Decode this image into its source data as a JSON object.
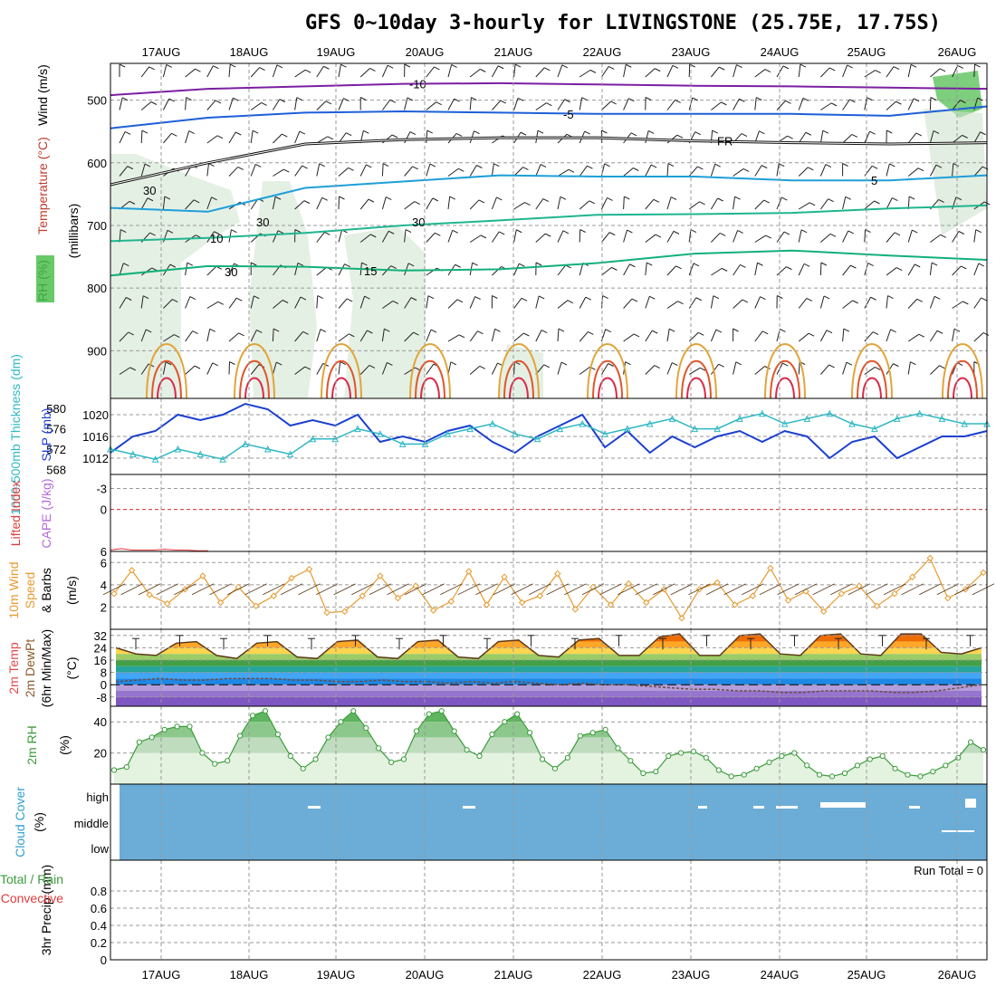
{
  "header": {
    "title": "GFS 0~10day 3-hourly for LIVINGSTONE (25.75E, 17.75S)"
  },
  "colors": {
    "temp_cold": "#7b1fa2",
    "temp_cool": "#1e5fd8",
    "temp_mild": "#1e9fd8",
    "temp_warm": "#1fb58f",
    "temp_hot": "#e1a53a",
    "temp_vhot": "#e0562b",
    "rh_fill": "#cfe3cf",
    "slp": "#1a3fd0",
    "thickness": "#2eb8c4",
    "wind_speed": "#e79a2f",
    "cloud": "#6badd6",
    "rh2m": "#3a9c3a"
  },
  "chart_data": [
    {
      "type": "line",
      "panel": "upper-air",
      "days": [
        "17AUG",
        "18AUG",
        "19AUG",
        "20AUG",
        "21AUG",
        "22AUG",
        "23AUG",
        "24AUG",
        "25AUG",
        "26AUG"
      ],
      "ylabel_parts": [
        "RH (%)",
        "Temperature (°C)",
        "Wind (m/s)"
      ],
      "ylabel_units": "(millibars)",
      "yticks": [
        500,
        600,
        700,
        800,
        900
      ],
      "ylim": [
        1000,
        450
      ],
      "contour_labels": [
        "-10",
        "-5",
        "FR",
        "5",
        "10",
        "15",
        "30"
      ],
      "series": [
        {
          "name": "-10",
          "values": [
            492,
            482,
            478,
            474,
            473,
            475,
            477,
            478,
            480,
            482
          ]
        },
        {
          "name": "-5",
          "values": [
            545,
            528,
            520,
            518,
            520,
            522,
            522,
            522,
            525,
            510
          ]
        },
        {
          "name": "FR",
          "values": [
            635,
            600,
            570,
            563,
            560,
            560,
            565,
            568,
            570,
            568
          ]
        },
        {
          "name": "5",
          "values": [
            672,
            678,
            640,
            630,
            620,
            622,
            622,
            628,
            628,
            620
          ]
        },
        {
          "name": "10",
          "values": [
            725,
            720,
            712,
            700,
            692,
            683,
            682,
            680,
            673,
            668
          ]
        },
        {
          "name": "15",
          "values": [
            780,
            765,
            766,
            772,
            770,
            760,
            745,
            740,
            748,
            755
          ]
        }
      ]
    },
    {
      "type": "line",
      "panel": "pressure",
      "ylabel_left": "1000-500mb Thickness (dm)",
      "ylabel_right": "SLP (mb)",
      "yticks_left": [
        568,
        572,
        576,
        580
      ],
      "yticks_right": [
        1012,
        1016,
        1020
      ],
      "series": [
        {
          "name": "SLP (mb)",
          "values": [
            1013,
            1016,
            1017,
            1020,
            1019,
            1020,
            1022,
            1021,
            1018,
            1019,
            1018,
            1020,
            1015,
            1016,
            1015,
            1017,
            1018,
            1015,
            1013,
            1016,
            1018,
            1020,
            1014,
            1017,
            1013,
            1016,
            1014,
            1016,
            1017,
            1015,
            1017,
            1016,
            1012,
            1015,
            1016,
            1012,
            1014,
            1016,
            1016,
            1017
          ]
        },
        {
          "name": "1000-500mb Thickness (dm)",
          "values": [
            572,
            571,
            570,
            572,
            571,
            570,
            573,
            572,
            571,
            574,
            574,
            576,
            575,
            573,
            573,
            575,
            576,
            577,
            575,
            574,
            576,
            577,
            575,
            576,
            577,
            578,
            576,
            576,
            578,
            579,
            577,
            578,
            579,
            577,
            576,
            578,
            579,
            578,
            577,
            577
          ]
        }
      ]
    },
    {
      "type": "line",
      "panel": "stability",
      "ylabel_left": "Lifted Index",
      "ylabel_right": "CAPE (J/kg)",
      "yticks": [
        6,
        0,
        -3
      ],
      "ylim": [
        6,
        -5
      ],
      "series": [
        {
          "name": "Lifted Index",
          "values": [
            5.8,
            5.6,
            5.8,
            5.8,
            5.8,
            5.7,
            5.8,
            5.8,
            5.9,
            5.9
          ]
        }
      ]
    },
    {
      "type": "line",
      "panel": "wind10m",
      "ylabel_top": "10m Wind",
      "ylabel_mid": "Speed",
      "ylabel_bot": "& Barbs",
      "ylabel_units": "(m/s)",
      "yticks": [
        2,
        4,
        6
      ],
      "ylim": [
        0,
        7
      ],
      "series": [
        {
          "name": "Speed",
          "values": [
            3.2,
            5.3,
            3.1,
            2.3,
            3.6,
            4.8,
            2.4,
            3.8,
            2.1,
            3.0,
            4.6,
            5.4,
            1.5,
            1.6,
            3.0,
            4.8,
            2.8,
            3.9,
            1.7,
            2.5,
            5.2,
            2.2,
            4.7,
            2.4,
            3.0,
            5.0,
            1.8,
            3.8,
            2.2,
            4.1,
            2.4,
            3.6,
            1.0,
            3.6,
            4.2,
            2.2,
            3.0,
            5.5,
            2.6,
            3.4,
            1.6,
            3.2,
            3.9,
            2.1,
            3.2,
            4.7,
            6.4,
            2.8,
            3.6,
            5.1
          ]
        }
      ]
    },
    {
      "type": "area",
      "panel": "temp2m",
      "ylabel_top": "2m Temp",
      "ylabel_mid": "2m DewPt",
      "ylabel_bot": "(6hr Min/Max)",
      "ylabel_units": "(°C)",
      "yticks": [
        32,
        24,
        16,
        8,
        0,
        -8
      ],
      "ylim": [
        -14,
        36
      ],
      "series": [
        {
          "name": "2m Temp",
          "values": [
            24,
            20,
            19,
            27,
            28,
            19,
            17,
            27,
            28,
            18,
            17,
            28,
            29,
            18,
            17,
            28,
            29,
            18,
            17,
            28,
            29,
            19,
            18,
            29,
            30,
            19,
            19,
            31,
            33,
            19,
            19,
            32,
            33,
            20,
            19,
            32,
            33,
            20,
            19,
            33,
            33,
            21,
            20,
            24
          ]
        },
        {
          "name": "2m DewPt",
          "values": [
            2,
            3,
            4,
            3,
            3,
            4,
            4,
            4,
            3,
            3,
            2,
            2,
            3,
            2,
            2,
            1,
            2,
            1,
            2,
            1,
            0,
            1,
            0,
            0,
            -1,
            -2,
            -3,
            -3,
            -4,
            -4,
            -5,
            -5,
            -4,
            -4,
            -4,
            -5,
            -5,
            -4,
            -2,
            0
          ]
        }
      ]
    },
    {
      "type": "area",
      "panel": "rh2m",
      "ylabel": "2m RH",
      "ylabel_units": "(%)",
      "yticks": [
        20,
        40
      ],
      "ylim": [
        0,
        50
      ],
      "series": [
        {
          "name": "2m RH",
          "values": [
            9,
            11,
            27,
            30,
            35,
            37,
            37,
            20,
            13,
            15,
            31,
            44,
            47,
            32,
            18,
            10,
            16,
            30,
            40,
            47,
            36,
            23,
            14,
            16,
            34,
            45,
            47,
            34,
            22,
            18,
            32,
            40,
            45,
            33,
            16,
            10,
            17,
            31,
            33,
            35,
            23,
            15,
            7,
            8,
            18,
            20,
            21,
            17,
            9,
            5,
            6,
            10,
            14,
            18,
            20,
            12,
            6,
            5,
            7,
            12,
            16,
            18,
            10,
            6,
            5,
            8,
            12,
            17,
            27,
            22
          ]
        }
      ]
    },
    {
      "type": "heatmap",
      "panel": "cloud",
      "ylabel": "Cloud Cover",
      "ylabel_units": "(%)",
      "levels": [
        "high",
        "middle",
        "low"
      ]
    },
    {
      "type": "bar",
      "panel": "precip",
      "ylabel": "3hr Precip (mm)",
      "ylabel_left_a": "Total / Rain",
      "ylabel_left_b": "Convective",
      "run_total": "Run Total = 0",
      "yticks": [
        "0",
        "0.2",
        "0.4",
        "0.6",
        "0.8"
      ],
      "ylim": [
        0,
        1
      ],
      "values": []
    }
  ]
}
